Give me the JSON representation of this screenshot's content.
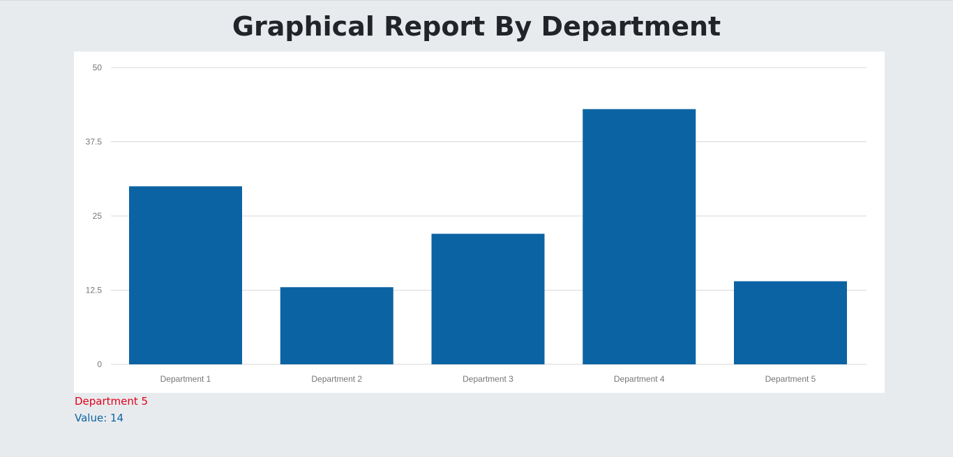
{
  "page": {
    "title": "Graphical Report By Department"
  },
  "selection": {
    "name": "Department 5",
    "value_text": "Value: 14"
  },
  "colors": {
    "bar": "#0c63a4",
    "grid": "#d9d9d9",
    "selected_name": "#e0001b",
    "selected_value": "#0c63a4"
  },
  "chart_data": {
    "type": "bar",
    "title": "Graphical Report By Department",
    "xlabel": "",
    "ylabel": "",
    "categories": [
      "Department 1",
      "Department 2",
      "Department 3",
      "Department 4",
      "Department 5"
    ],
    "values": [
      30,
      13,
      22,
      43,
      14
    ],
    "ylim": [
      0,
      50
    ],
    "yticks": [
      0,
      12.5,
      25,
      37.5,
      50
    ],
    "ytick_labels": [
      "0",
      "12.5",
      "25",
      "37.5",
      "50"
    ],
    "grid": true,
    "legend": "none"
  }
}
